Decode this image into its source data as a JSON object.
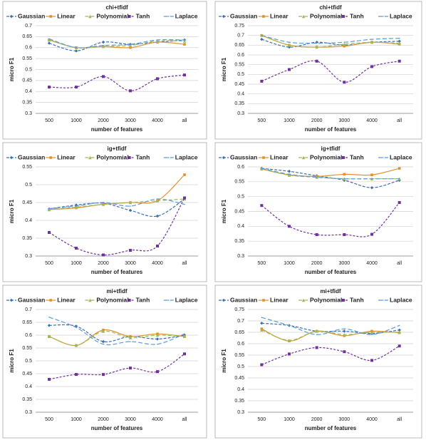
{
  "chart_data": [
    {
      "type": "line",
      "title": "chi+tfidf",
      "x_label": "number of features",
      "y_label": "micro F1",
      "categories": [
        "500",
        "1000",
        "2000",
        "3000",
        "4000",
        "all"
      ],
      "ylim": [
        0.3,
        0.7
      ],
      "yticks": [
        0.3,
        0.35,
        0.4,
        0.45,
        0.5,
        0.55,
        0.6,
        0.65,
        0.7
      ],
      "grid": true,
      "series": [
        {
          "name": "Gaussian",
          "color": "#3a6fb5",
          "values": [
            0.62,
            0.585,
            0.625,
            0.615,
            0.625,
            0.635
          ]
        },
        {
          "name": "Linear",
          "color": "#e0902c",
          "values": [
            0.635,
            0.6,
            0.605,
            0.6,
            0.625,
            0.615
          ]
        },
        {
          "name": "Polynomial",
          "color": "#9bbb59",
          "values": [
            0.635,
            0.6,
            0.605,
            0.61,
            0.63,
            0.63
          ]
        },
        {
          "name": "Tanh",
          "color": "#7030a0",
          "values": [
            0.42,
            0.42,
            0.468,
            0.403,
            0.458,
            0.475
          ]
        },
        {
          "name": "Laplace",
          "color": "#5b9bd5",
          "values": [
            0.64,
            0.6,
            0.61,
            0.615,
            0.635,
            0.635
          ]
        }
      ]
    },
    {
      "type": "line",
      "title": "chi+tfidf",
      "x_label": "number of features",
      "y_label": "micro F1",
      "categories": [
        "500",
        "1000",
        "2000",
        "3000",
        "4000",
        "all"
      ],
      "ylim": [
        0.3,
        0.75
      ],
      "yticks": [
        0.3,
        0.35,
        0.4,
        0.45,
        0.5,
        0.55,
        0.6,
        0.65,
        0.7,
        0.75
      ],
      "grid": true,
      "series": [
        {
          "name": "Gaussian",
          "color": "#3a6fb5",
          "values": [
            0.68,
            0.64,
            0.665,
            0.65,
            0.665,
            0.67
          ]
        },
        {
          "name": "Linear",
          "color": "#e0902c",
          "values": [
            0.7,
            0.65,
            0.64,
            0.645,
            0.665,
            0.655
          ]
        },
        {
          "name": "Polynomial",
          "color": "#9bbb59",
          "values": [
            0.7,
            0.65,
            0.64,
            0.655,
            0.665,
            0.66
          ]
        },
        {
          "name": "Tanh",
          "color": "#7030a0",
          "values": [
            0.465,
            0.525,
            0.568,
            0.46,
            0.54,
            0.568
          ]
        },
        {
          "name": "Laplace",
          "color": "#5b9bd5",
          "values": [
            0.7,
            0.665,
            0.66,
            0.665,
            0.68,
            0.685
          ]
        }
      ]
    },
    {
      "type": "line",
      "title": "ig+tfidf",
      "x_label": "number of features",
      "y_label": "micro F1",
      "categories": [
        "500",
        "1000",
        "2000",
        "3000",
        "4000",
        "all"
      ],
      "ylim": [
        0.3,
        0.55
      ],
      "yticks": [
        0.3,
        0.35,
        0.4,
        0.45,
        0.5,
        0.55
      ],
      "grid": true,
      "series": [
        {
          "name": "Gaussian",
          "color": "#3a6fb5",
          "values": [
            0.432,
            0.443,
            0.448,
            0.428,
            0.412,
            0.46
          ]
        },
        {
          "name": "Linear",
          "color": "#e0902c",
          "values": [
            0.43,
            0.435,
            0.445,
            0.45,
            0.455,
            0.528
          ]
        },
        {
          "name": "Polynomial",
          "color": "#9bbb59",
          "values": [
            0.43,
            0.437,
            0.445,
            0.45,
            0.455,
            0.46
          ]
        },
        {
          "name": "Tanh",
          "color": "#7030a0",
          "values": [
            0.366,
            0.322,
            0.303,
            0.316,
            0.328,
            0.463
          ]
        },
        {
          "name": "Laplace",
          "color": "#5b9bd5",
          "values": [
            0.433,
            0.44,
            0.45,
            0.44,
            0.46,
            0.445
          ]
        }
      ]
    },
    {
      "type": "line",
      "title": "ig+tfidf",
      "x_label": "number of features",
      "y_label": "micro F1",
      "categories": [
        "500",
        "1000",
        "2000",
        "3000",
        "4000",
        "all"
      ],
      "ylim": [
        0.3,
        0.6
      ],
      "yticks": [
        0.3,
        0.35,
        0.4,
        0.45,
        0.5,
        0.55,
        0.6
      ],
      "grid": true,
      "series": [
        {
          "name": "Gaussian",
          "color": "#3a6fb5",
          "values": [
            0.595,
            0.585,
            0.57,
            0.555,
            0.53,
            0.555
          ]
        },
        {
          "name": "Linear",
          "color": "#e0902c",
          "values": [
            0.593,
            0.573,
            0.568,
            0.575,
            0.573,
            0.595
          ]
        },
        {
          "name": "Polynomial",
          "color": "#9bbb59",
          "values": [
            0.593,
            0.572,
            0.565,
            0.56,
            0.56,
            0.56
          ]
        },
        {
          "name": "Tanh",
          "color": "#7030a0",
          "values": [
            0.47,
            0.4,
            0.372,
            0.372,
            0.373,
            0.48
          ]
        },
        {
          "name": "Laplace",
          "color": "#5b9bd5",
          "values": [
            0.595,
            0.575,
            0.565,
            0.56,
            0.56,
            0.56
          ]
        }
      ]
    },
    {
      "type": "line",
      "title": "mi+tfidf",
      "x_label": "number of features",
      "y_label": "micro F1",
      "categories": [
        "500",
        "1000",
        "2000",
        "3000",
        "4000",
        "all"
      ],
      "ylim": [
        0.3,
        0.7
      ],
      "yticks": [
        0.3,
        0.35,
        0.4,
        0.45,
        0.5,
        0.55,
        0.6,
        0.65,
        0.7
      ],
      "grid": true,
      "series": [
        {
          "name": "Gaussian",
          "color": "#3a6fb5",
          "values": [
            0.638,
            0.635,
            0.575,
            0.595,
            0.585,
            0.6
          ]
        },
        {
          "name": "Linear",
          "color": "#e0902c",
          "values": [
            0.595,
            0.56,
            0.62,
            0.595,
            0.605,
            0.595
          ]
        },
        {
          "name": "Polynomial",
          "color": "#9bbb59",
          "values": [
            0.595,
            0.56,
            0.615,
            0.59,
            0.6,
            0.595
          ]
        },
        {
          "name": "Tanh",
          "color": "#7030a0",
          "values": [
            0.428,
            0.447,
            0.447,
            0.472,
            0.458,
            0.527
          ]
        },
        {
          "name": "Laplace",
          "color": "#5b9bd5",
          "values": [
            0.67,
            0.63,
            0.565,
            0.575,
            0.565,
            0.605
          ]
        }
      ]
    },
    {
      "type": "line",
      "title": "mi+tfidf",
      "x_label": "number of features",
      "y_label": "micro F1",
      "categories": [
        "500",
        "1000",
        "2000",
        "3000",
        "4000",
        "all"
      ],
      "ylim": [
        0.3,
        0.75
      ],
      "yticks": [
        0.3,
        0.35,
        0.4,
        0.45,
        0.5,
        0.55,
        0.6,
        0.65,
        0.7,
        0.75
      ],
      "grid": true,
      "series": [
        {
          "name": "Gaussian",
          "color": "#3a6fb5",
          "values": [
            0.69,
            0.68,
            0.655,
            0.655,
            0.645,
            0.66
          ]
        },
        {
          "name": "Linear",
          "color": "#e0902c",
          "values": [
            0.665,
            0.612,
            0.655,
            0.635,
            0.655,
            0.648
          ]
        },
        {
          "name": "Polynomial",
          "color": "#9bbb59",
          "values": [
            0.66,
            0.615,
            0.655,
            0.64,
            0.65,
            0.65
          ]
        },
        {
          "name": "Tanh",
          "color": "#7030a0",
          "values": [
            0.508,
            0.555,
            0.583,
            0.565,
            0.527,
            0.59
          ]
        },
        {
          "name": "Laplace",
          "color": "#5b9bd5",
          "values": [
            0.715,
            0.68,
            0.64,
            0.665,
            0.64,
            0.68
          ]
        }
      ]
    }
  ]
}
